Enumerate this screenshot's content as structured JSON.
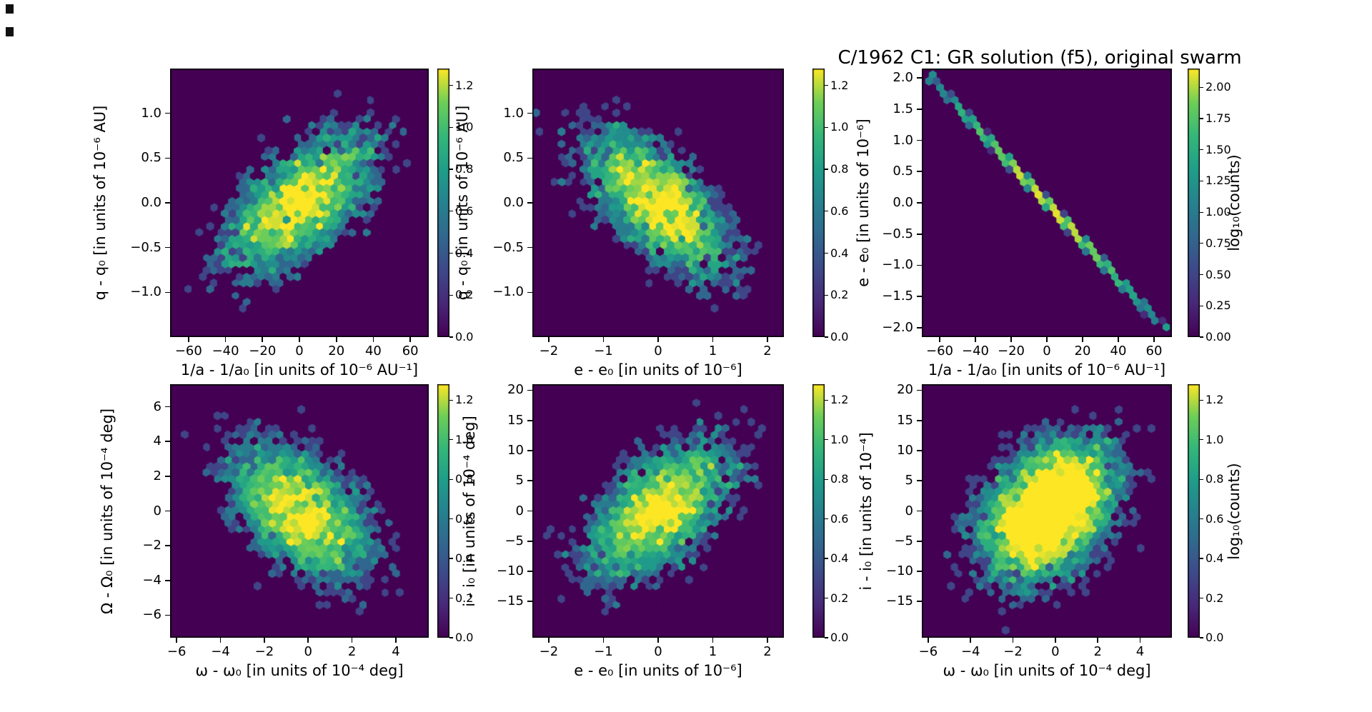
{
  "figure": {
    "title": "C/1962 C1: GR solution (f5), original swarm",
    "colormap": "viridis",
    "background_color": "#ffffff",
    "hexbin_zero_color": "#440154"
  },
  "chart_data": [
    {
      "id": "top-left",
      "type": "hexbin",
      "xlabel": "1/a - 1/a₀ [in units of 10⁻⁶ AU⁻¹]",
      "ylabel": "q - q₀ [in units of 10⁻⁶ AU]",
      "xlim": [
        -70,
        70
      ],
      "ylim": [
        -1.5,
        1.5
      ],
      "xticks": [
        -60,
        -40,
        -20,
        0,
        20,
        40,
        60
      ],
      "xtick_labels": [
        "−60",
        "−40",
        "−20",
        "0",
        "20",
        "40",
        "60"
      ],
      "yticks": [
        1.0,
        0.5,
        0.0,
        -0.5,
        -1.0
      ],
      "ytick_labels": [
        "1.0",
        "0.5",
        "0.0",
        "−0.5",
        "−1.0"
      ],
      "colorbar": {
        "vmax": 1.28,
        "tick_values": [
          1.2,
          1.0,
          0.8,
          0.6,
          0.4,
          0.2,
          0.0
        ],
        "tick_labels": [
          "1.2",
          "1.0",
          "0.8",
          "0.6",
          "0.4",
          "0.2",
          "0.0"
        ],
        "label": ""
      },
      "distribution": {
        "shape": "gaussian",
        "center": [
          0,
          0
        ],
        "sigma": [
          22,
          0.42
        ],
        "correlation": 0.6,
        "n_points": 3500,
        "seed": 11,
        "note": "elliptical density cloud, positive correlation, peak log10(counts) ~1.25"
      }
    },
    {
      "id": "top-middle",
      "type": "hexbin",
      "xlabel": "e - e₀ [in units of 10⁻⁶]",
      "ylabel": "q - q₀ [in units of 10⁻⁶ AU]",
      "xlim": [
        -2.3,
        2.3
      ],
      "ylim": [
        -1.5,
        1.5
      ],
      "xticks": [
        -2,
        -1,
        0,
        1,
        2
      ],
      "xtick_labels": [
        "−2",
        "−1",
        "0",
        "1",
        "2"
      ],
      "yticks": [
        1.0,
        0.5,
        0.0,
        -0.5,
        -1.0
      ],
      "ytick_labels": [
        "1.0",
        "0.5",
        "0.0",
        "−0.5",
        "−1.0"
      ],
      "colorbar": {
        "vmax": 1.28,
        "tick_values": [
          1.2,
          1.0,
          0.8,
          0.6,
          0.4,
          0.2,
          0.0
        ],
        "tick_labels": [
          "1.2",
          "1.0",
          "0.8",
          "0.6",
          "0.4",
          "0.2",
          "0.0"
        ],
        "label": ""
      },
      "distribution": {
        "shape": "gaussian",
        "center": [
          0,
          0
        ],
        "sigma": [
          0.72,
          0.42
        ],
        "correlation": -0.62,
        "n_points": 3500,
        "seed": 22,
        "note": "elliptical density cloud, negative correlation, peak log10(counts) ~1.25"
      }
    },
    {
      "id": "top-right",
      "type": "hexbin",
      "xlabel": "1/a - 1/a₀ [in units of 10⁻⁶ AU⁻¹]",
      "ylabel": "e - e₀ [in units of 10⁻⁶]",
      "xlim": [
        -70,
        70
      ],
      "ylim": [
        -2.15,
        2.15
      ],
      "xticks": [
        -60,
        -40,
        -20,
        0,
        20,
        40,
        60
      ],
      "xtick_labels": [
        "−60",
        "−40",
        "−20",
        "0",
        "20",
        "40",
        "60"
      ],
      "yticks": [
        2.0,
        1.5,
        1.0,
        0.5,
        0.0,
        -0.5,
        -1.0,
        -1.5,
        -2.0
      ],
      "ytick_labels": [
        "2.0",
        "1.5",
        "1.0",
        "0.5",
        "0.0",
        "−0.5",
        "−1.0",
        "−1.5",
        "−2.0"
      ],
      "colorbar": {
        "vmax": 2.15,
        "tick_values": [
          2.0,
          1.75,
          1.5,
          1.25,
          1.0,
          0.75,
          0.5,
          0.25,
          0.0
        ],
        "tick_labels": [
          "2.00",
          "1.75",
          "1.50",
          "1.25",
          "1.00",
          "0.75",
          "0.50",
          "0.25",
          "0.00"
        ],
        "label": "log₁₀(counts)"
      },
      "distribution": {
        "shape": "line",
        "center": [
          0,
          0
        ],
        "sigma": [
          27,
          0.018
        ],
        "slope": -0.03077,
        "correlation": -1,
        "n_points": 3000,
        "seed": 33,
        "note": "thin anti-correlated diagonal from (−65, 2.0) to (65, −2.0); yellow (log10~2.1) at center, teal/blue toward ends"
      }
    },
    {
      "id": "bottom-left",
      "type": "hexbin",
      "xlabel": "ω - ω₀ [in units of 10⁻⁴ deg]",
      "ylabel": "Ω - Ω₀ [in units of 10⁻⁴ deg]",
      "xlim": [
        -6.3,
        5.5
      ],
      "ylim": [
        -7.3,
        7.3
      ],
      "xticks": [
        -6,
        -4,
        -2,
        0,
        2,
        4
      ],
      "xtick_labels": [
        "−6",
        "−4",
        "−2",
        "0",
        "2",
        "4"
      ],
      "yticks": [
        6,
        4,
        2,
        0,
        -2,
        -4,
        -6
      ],
      "ytick_labels": [
        "6",
        "4",
        "2",
        "0",
        "−2",
        "−4",
        "−6"
      ],
      "colorbar": {
        "vmax": 1.28,
        "tick_values": [
          1.2,
          1.0,
          0.8,
          0.6,
          0.4,
          0.2,
          0.0
        ],
        "tick_labels": [
          "1.2",
          "1.0",
          "0.8",
          "0.6",
          "0.4",
          "0.2",
          "0.0"
        ],
        "label": ""
      },
      "distribution": {
        "shape": "gaussian",
        "center": [
          -0.4,
          0
        ],
        "sigma": [
          1.75,
          2.1
        ],
        "correlation": -0.5,
        "n_points": 3500,
        "seed": 44,
        "note": "elliptical density cloud, negative correlation, peak log10(counts) ~1.25"
      }
    },
    {
      "id": "bottom-middle",
      "type": "hexbin",
      "xlabel": "e - e₀ [in units of 10⁻⁶]",
      "ylabel": "i - i₀ [in units of 10⁻⁴ deg]",
      "xlim": [
        -2.3,
        2.3
      ],
      "ylim": [
        -21,
        21
      ],
      "xticks": [
        -2,
        -1,
        0,
        1,
        2
      ],
      "xtick_labels": [
        "−2",
        "−1",
        "0",
        "1",
        "2"
      ],
      "yticks": [
        20,
        15,
        10,
        5,
        0,
        -5,
        -10,
        -15
      ],
      "ytick_labels": [
        "20",
        "15",
        "10",
        "5",
        "0",
        "−5",
        "−10",
        "−15"
      ],
      "colorbar": {
        "vmax": 1.28,
        "tick_values": [
          1.2,
          1.0,
          0.8,
          0.6,
          0.4,
          0.2,
          0.0
        ],
        "tick_labels": [
          "1.2",
          "1.0",
          "0.8",
          "0.6",
          "0.4",
          "0.2",
          "0.0"
        ],
        "label": ""
      },
      "distribution": {
        "shape": "gaussian",
        "center": [
          0,
          0
        ],
        "sigma": [
          0.72,
          6.0
        ],
        "correlation": 0.55,
        "n_points": 3500,
        "seed": 55,
        "note": "elliptical density cloud, positive correlation, peak log10(counts) ~1.25"
      }
    },
    {
      "id": "bottom-right",
      "type": "hexbin",
      "xlabel": "ω - ω₀ [in units of 10⁻⁴ deg]",
      "ylabel": "i - i₀ [in units of 10⁻⁴]",
      "xlim": [
        -6.3,
        5.5
      ],
      "ylim": [
        -21,
        21
      ],
      "xticks": [
        -6,
        -4,
        -2,
        0,
        2,
        4
      ],
      "xtick_labels": [
        "−6",
        "−4",
        "−2",
        "0",
        "2",
        "4"
      ],
      "yticks": [
        20,
        15,
        10,
        5,
        0,
        -5,
        -10,
        -15
      ],
      "ytick_labels": [
        "20",
        "15",
        "10",
        "5",
        "0",
        "−5",
        "−10",
        "−15"
      ],
      "colorbar": {
        "vmax": 1.28,
        "tick_values": [
          1.2,
          1.0,
          0.8,
          0.6,
          0.4,
          0.2,
          0.0
        ],
        "tick_labels": [
          "1.2",
          "1.0",
          "0.8",
          "0.6",
          "0.4",
          "0.2",
          "0.0"
        ],
        "label": "log₁₀(counts)"
      },
      "distribution": {
        "shape": "gaussian",
        "center": [
          -0.3,
          0
        ],
        "sigma": [
          1.6,
          5.8
        ],
        "correlation": 0.35,
        "n_points": 6500,
        "seed": 66,
        "note": "roundish density cloud, mild positive correlation, peak log10(counts) ~1.25"
      }
    }
  ]
}
